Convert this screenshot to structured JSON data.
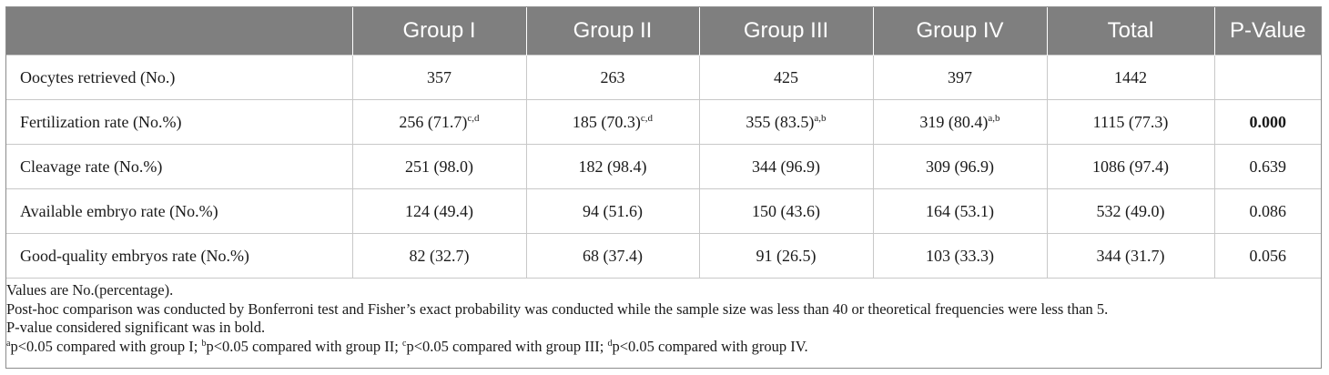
{
  "table": {
    "headers": [
      "",
      "Group I",
      "Group II",
      "Group III",
      "Group IV",
      "Total",
      "P-Value"
    ],
    "rows": [
      {
        "label": "Oocytes retrieved (No.)",
        "cells": [
          {
            "text": "357",
            "sup": ""
          },
          {
            "text": "263",
            "sup": ""
          },
          {
            "text": "425",
            "sup": ""
          },
          {
            "text": "397",
            "sup": ""
          },
          {
            "text": "1442",
            "sup": ""
          }
        ],
        "p_value": "",
        "p_bold": false
      },
      {
        "label": "Fertilization rate (No.%)",
        "cells": [
          {
            "text": "256 (71.7)",
            "sup": "c,d"
          },
          {
            "text": "185 (70.3)",
            "sup": "c,d"
          },
          {
            "text": "355 (83.5)",
            "sup": "a,b"
          },
          {
            "text": "319 (80.4)",
            "sup": "a,b"
          },
          {
            "text": "1115 (77.3)",
            "sup": ""
          }
        ],
        "p_value": "0.000",
        "p_bold": true
      },
      {
        "label": "Cleavage rate (No.%)",
        "cells": [
          {
            "text": "251 (98.0)",
            "sup": ""
          },
          {
            "text": "182 (98.4)",
            "sup": ""
          },
          {
            "text": "344 (96.9)",
            "sup": ""
          },
          {
            "text": "309 (96.9)",
            "sup": ""
          },
          {
            "text": "1086 (97.4)",
            "sup": ""
          }
        ],
        "p_value": "0.639",
        "p_bold": false
      },
      {
        "label": "Available embryo rate (No.%)",
        "cells": [
          {
            "text": "124 (49.4)",
            "sup": ""
          },
          {
            "text": "94 (51.6)",
            "sup": ""
          },
          {
            "text": "150 (43.6)",
            "sup": ""
          },
          {
            "text": "164 (53.1)",
            "sup": ""
          },
          {
            "text": "532 (49.0)",
            "sup": ""
          }
        ],
        "p_value": "0.086",
        "p_bold": false
      },
      {
        "label": "Good-quality embryos rate (No.%)",
        "cells": [
          {
            "text": "82 (32.7)",
            "sup": ""
          },
          {
            "text": "68 (37.4)",
            "sup": ""
          },
          {
            "text": "91 (26.5)",
            "sup": ""
          },
          {
            "text": "103 (33.3)",
            "sup": ""
          },
          {
            "text": "344 (31.7)",
            "sup": ""
          }
        ],
        "p_value": "0.056",
        "p_bold": false
      }
    ]
  },
  "notes": {
    "line1": "Values are No.(percentage).",
    "line2": "Post-hoc comparison was conducted by Bonferroni test and Fisher’s exact probability was conducted while the sample size was less than 40 or theoretical frequencies were less than 5.",
    "line3": "P-value considered significant was in bold.",
    "footnotes": [
      {
        "mark": "a",
        "text": "p<0.05 compared with group I; "
      },
      {
        "mark": "b",
        "text": "p<0.05 compared with group II; "
      },
      {
        "mark": "c",
        "text": "p<0.05 compared with group III; "
      },
      {
        "mark": "d",
        "text": "p<0.05 compared with group IV."
      }
    ]
  },
  "colors": {
    "header_bg": "#7f7f7f",
    "header_text": "#ffffff",
    "grid_line": "#c8c8c8",
    "frame_border": "#8c8c8c"
  }
}
